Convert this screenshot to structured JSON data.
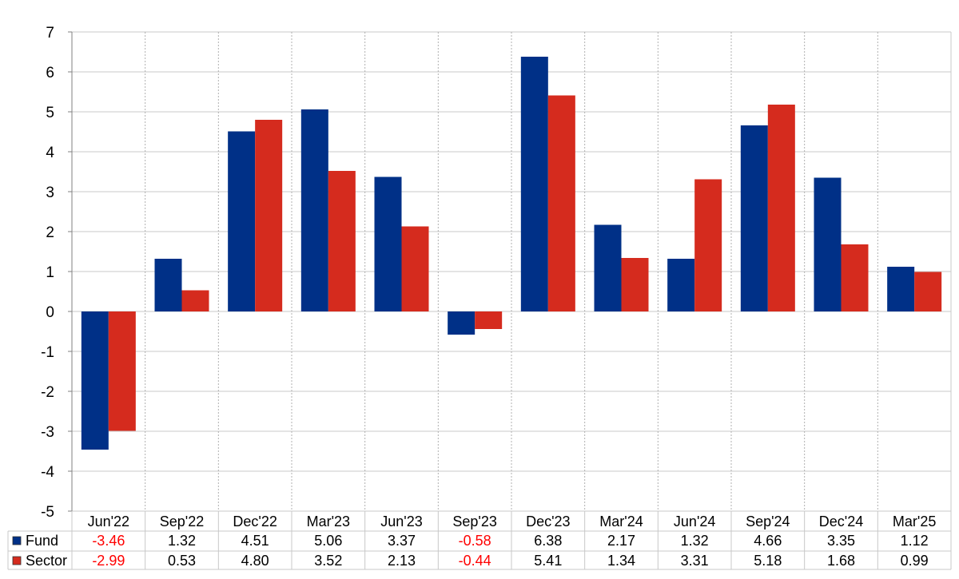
{
  "chart_data": {
    "type": "bar",
    "categories": [
      "Jun'22",
      "Sep'22",
      "Dec'22",
      "Mar'23",
      "Jun'23",
      "Sep'23",
      "Dec'23",
      "Mar'24",
      "Jun'24",
      "Sep'24",
      "Dec'24",
      "Mar'25"
    ],
    "series": [
      {
        "name": "Fund",
        "color": "#003087",
        "values": [
          -3.46,
          1.32,
          4.51,
          5.06,
          3.37,
          -0.58,
          6.38,
          2.17,
          1.32,
          4.66,
          3.35,
          1.12
        ],
        "labels": [
          "-3.46",
          "1.32",
          "4.51",
          "5.06",
          "3.37",
          "-0.58",
          "6.38",
          "2.17",
          "1.32",
          "4.66",
          "3.35",
          "1.12"
        ]
      },
      {
        "name": "Sector",
        "color": "#d52b1e",
        "values": [
          -2.99,
          0.53,
          4.8,
          3.52,
          2.13,
          -0.44,
          5.41,
          1.34,
          3.31,
          5.18,
          1.68,
          0.99
        ],
        "labels": [
          "-2.99",
          "0.53",
          "4.80",
          "3.52",
          "2.13",
          "-0.44",
          "5.41",
          "1.34",
          "3.31",
          "5.18",
          "1.68",
          "0.99"
        ]
      }
    ],
    "ylim": [
      -5,
      7
    ],
    "yticks": [
      "-5",
      "-4",
      "-3",
      "-2",
      "-1",
      "0",
      "1",
      "2",
      "3",
      "4",
      "5",
      "6",
      "7"
    ],
    "negative_label_color": "#ff0000",
    "grid": true,
    "legend": "data-table-below"
  }
}
